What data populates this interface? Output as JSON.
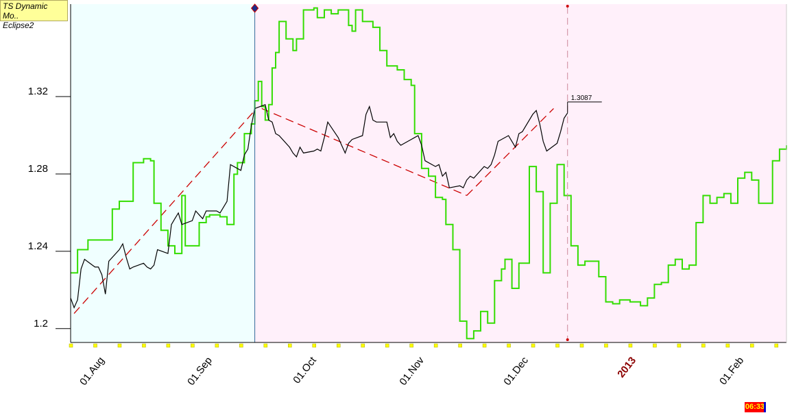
{
  "indicator": {
    "name": "TS Dynamic Mo..",
    "instance": "Eclipse2"
  },
  "clock": "06:33",
  "price_label": "1.3087",
  "colors": {
    "background_left": "#f0ffff",
    "background_right": "#fff0fa",
    "price_series": "#000000",
    "indicator_series": "#33dd00",
    "trend_lines": "#cc0000",
    "date_marker": "#336699",
    "tick_yellow": "#ffff00"
  },
  "chart_data": {
    "type": "line",
    "title": "",
    "xlabel": "",
    "ylabel": "",
    "ylim": [
      1.19,
      1.365
    ],
    "xlim": [
      "2012-07-23",
      "2013-02-14"
    ],
    "y_ticks": [
      "1.2",
      "1.24",
      "1.28",
      "1.32"
    ],
    "x_ticks": [
      {
        "date": "2012-08-01",
        "label": "01.Aug"
      },
      {
        "date": "2012-09-01",
        "label": "01.Sep"
      },
      {
        "date": "2012-10-01",
        "label": "01.Oct"
      },
      {
        "date": "2012-11-01",
        "label": "01.Nov"
      },
      {
        "date": "2012-12-01",
        "label": "01.Dec"
      },
      {
        "date": "2013-01-01",
        "label": "2013"
      },
      {
        "date": "2013-02-01",
        "label": "01.Feb"
      }
    ],
    "vertical_markers": [
      {
        "date": "2012-09-14",
        "style": "solid"
      },
      {
        "date": "2012-12-13",
        "style": "dashed"
      }
    ],
    "last_price": {
      "date": "2012-12-13",
      "value": 1.3087
    },
    "series": [
      {
        "role": "price",
        "points": [
          [
            "2012-07-23",
            1.213
          ],
          [
            "2012-07-24",
            1.208
          ],
          [
            "2012-07-25",
            1.212
          ],
          [
            "2012-07-26",
            1.228
          ],
          [
            "2012-07-27",
            1.233
          ],
          [
            "2012-07-30",
            1.229
          ],
          [
            "2012-07-31",
            1.229
          ],
          [
            "2012-08-01",
            1.225
          ],
          [
            "2012-08-02",
            1.215
          ],
          [
            "2012-08-03",
            1.232
          ],
          [
            "2012-08-06",
            1.238
          ],
          [
            "2012-08-07",
            1.241
          ],
          [
            "2012-08-08",
            1.234
          ],
          [
            "2012-08-09",
            1.228
          ],
          [
            "2012-08-10",
            1.229
          ],
          [
            "2012-08-13",
            1.231
          ],
          [
            "2012-08-14",
            1.229
          ],
          [
            "2012-08-15",
            1.228
          ],
          [
            "2012-08-16",
            1.23
          ],
          [
            "2012-08-17",
            1.238
          ],
          [
            "2012-08-20",
            1.236
          ],
          [
            "2012-08-21",
            1.251
          ],
          [
            "2012-08-22",
            1.254
          ],
          [
            "2012-08-23",
            1.257
          ],
          [
            "2012-08-24",
            1.251
          ],
          [
            "2012-08-27",
            1.253
          ],
          [
            "2012-08-28",
            1.258
          ],
          [
            "2012-08-29",
            1.256
          ],
          [
            "2012-08-30",
            1.254
          ],
          [
            "2012-08-31",
            1.258
          ],
          [
            "2012-09-03",
            1.258
          ],
          [
            "2012-09-04",
            1.257
          ],
          [
            "2012-09-05",
            1.26
          ],
          [
            "2012-09-06",
            1.263
          ],
          [
            "2012-09-07",
            1.282
          ],
          [
            "2012-09-10",
            1.279
          ],
          [
            "2012-09-11",
            1.287
          ],
          [
            "2012-09-12",
            1.29
          ],
          [
            "2012-09-13",
            1.302
          ],
          [
            "2012-09-14",
            1.311
          ],
          [
            "2012-09-17",
            1.313
          ],
          [
            "2012-09-18",
            1.305
          ],
          [
            "2012-09-19",
            1.304
          ],
          [
            "2012-09-20",
            1.298
          ],
          [
            "2012-09-21",
            1.297
          ],
          [
            "2012-09-24",
            1.291
          ],
          [
            "2012-09-25",
            1.288
          ],
          [
            "2012-09-26",
            1.286
          ],
          [
            "2012-09-27",
            1.291
          ],
          [
            "2012-09-28",
            1.288
          ],
          [
            "2012-10-01",
            1.289
          ],
          [
            "2012-10-02",
            1.29
          ],
          [
            "2012-10-03",
            1.289
          ],
          [
            "2012-10-04",
            1.296
          ],
          [
            "2012-10-05",
            1.304
          ],
          [
            "2012-10-08",
            1.296
          ],
          [
            "2012-10-09",
            1.292
          ],
          [
            "2012-10-10",
            1.288
          ],
          [
            "2012-10-11",
            1.293
          ],
          [
            "2012-10-12",
            1.295
          ],
          [
            "2012-10-15",
            1.297
          ],
          [
            "2012-10-16",
            1.308
          ],
          [
            "2012-10-17",
            1.312
          ],
          [
            "2012-10-18",
            1.305
          ],
          [
            "2012-10-19",
            1.304
          ],
          [
            "2012-10-22",
            1.304
          ],
          [
            "2012-10-23",
            1.296
          ],
          [
            "2012-10-24",
            1.298
          ],
          [
            "2012-10-25",
            1.294
          ],
          [
            "2012-10-26",
            1.292
          ],
          [
            "2012-10-29",
            1.295
          ],
          [
            "2012-10-30",
            1.296
          ],
          [
            "2012-10-31",
            1.297
          ],
          [
            "2012-11-01",
            1.292
          ],
          [
            "2012-11-02",
            1.284
          ],
          [
            "2012-11-05",
            1.281
          ],
          [
            "2012-11-06",
            1.282
          ],
          [
            "2012-11-07",
            1.276
          ],
          [
            "2012-11-08",
            1.278
          ],
          [
            "2012-11-09",
            1.27
          ],
          [
            "2012-11-12",
            1.271
          ],
          [
            "2012-11-13",
            1.27
          ],
          [
            "2012-11-14",
            1.274
          ],
          [
            "2012-11-15",
            1.276
          ],
          [
            "2012-11-16",
            1.275
          ],
          [
            "2012-11-19",
            1.281
          ],
          [
            "2012-11-20",
            1.28
          ],
          [
            "2012-11-21",
            1.282
          ],
          [
            "2012-11-22",
            1.287
          ],
          [
            "2012-11-23",
            1.294
          ],
          [
            "2012-11-26",
            1.297
          ],
          [
            "2012-11-27",
            1.294
          ],
          [
            "2012-11-28",
            1.291
          ],
          [
            "2012-11-29",
            1.298
          ],
          [
            "2012-11-30",
            1.299
          ],
          [
            "2012-12-03",
            1.308
          ],
          [
            "2012-12-04",
            1.31
          ],
          [
            "2012-12-05",
            1.303
          ],
          [
            "2012-12-06",
            1.294
          ],
          [
            "2012-12-07",
            1.289
          ],
          [
            "2012-12-10",
            1.293
          ],
          [
            "2012-12-11",
            1.299
          ],
          [
            "2012-12-12",
            1.306
          ],
          [
            "2012-12-13",
            1.3087
          ]
        ]
      },
      {
        "role": "indicator",
        "points": [
          [
            "2012-07-23",
            1.226
          ],
          [
            "2012-07-25",
            1.238
          ],
          [
            "2012-07-28",
            1.243
          ],
          [
            "2012-07-31",
            1.243
          ],
          [
            "2012-08-04",
            1.259
          ],
          [
            "2012-08-06",
            1.263
          ],
          [
            "2012-08-08",
            1.263
          ],
          [
            "2012-08-10",
            1.283
          ],
          [
            "2012-08-13",
            1.285
          ],
          [
            "2012-08-15",
            1.284
          ],
          [
            "2012-08-16",
            1.262
          ],
          [
            "2012-08-18",
            1.248
          ],
          [
            "2012-08-20",
            1.24
          ],
          [
            "2012-08-22",
            1.236
          ],
          [
            "2012-08-24",
            1.266
          ],
          [
            "2012-08-25",
            1.24
          ],
          [
            "2012-08-27",
            1.24
          ],
          [
            "2012-08-29",
            1.252
          ],
          [
            "2012-08-31",
            1.255
          ],
          [
            "2012-09-01",
            1.256
          ],
          [
            "2012-09-04",
            1.255
          ],
          [
            "2012-09-06",
            1.251
          ],
          [
            "2012-09-08",
            1.277
          ],
          [
            "2012-09-09",
            1.283
          ],
          [
            "2012-09-11",
            1.298
          ],
          [
            "2012-09-13",
            1.303
          ],
          [
            "2012-09-14",
            1.315
          ],
          [
            "2012-09-15",
            1.325
          ],
          [
            "2012-09-16",
            1.312
          ],
          [
            "2012-09-17",
            1.305
          ],
          [
            "2012-09-18",
            1.313
          ],
          [
            "2012-09-19",
            1.332
          ],
          [
            "2012-09-20",
            1.34
          ],
          [
            "2012-09-21",
            1.356
          ],
          [
            "2012-09-23",
            1.347
          ],
          [
            "2012-09-25",
            1.341
          ],
          [
            "2012-09-26",
            1.347
          ],
          [
            "2012-09-28",
            1.362
          ],
          [
            "2012-10-01",
            1.363
          ],
          [
            "2012-10-02",
            1.358
          ],
          [
            "2012-10-04",
            1.362
          ],
          [
            "2012-10-06",
            1.36
          ],
          [
            "2012-10-08",
            1.362
          ],
          [
            "2012-10-10",
            1.362
          ],
          [
            "2012-10-11",
            1.354
          ],
          [
            "2012-10-12",
            1.351
          ],
          [
            "2012-10-13",
            1.362
          ],
          [
            "2012-10-15",
            1.356
          ],
          [
            "2012-10-18",
            1.353
          ],
          [
            "2012-10-20",
            1.341
          ],
          [
            "2012-10-22",
            1.333
          ],
          [
            "2012-10-25",
            1.331
          ],
          [
            "2012-10-27",
            1.326
          ],
          [
            "2012-10-29",
            1.323
          ],
          [
            "2012-10-30",
            1.298
          ],
          [
            "2012-11-01",
            1.28
          ],
          [
            "2012-11-03",
            1.276
          ],
          [
            "2012-11-05",
            1.265
          ],
          [
            "2012-11-07",
            1.264
          ],
          [
            "2012-11-08",
            1.251
          ],
          [
            "2012-11-10",
            1.238
          ],
          [
            "2012-11-12",
            1.201
          ],
          [
            "2012-11-14",
            1.192
          ],
          [
            "2012-11-16",
            1.196
          ],
          [
            "2012-11-18",
            1.206
          ],
          [
            "2012-11-20",
            1.2
          ],
          [
            "2012-11-22",
            1.222
          ],
          [
            "2012-11-24",
            1.228
          ],
          [
            "2012-11-25",
            1.233
          ],
          [
            "2012-11-27",
            1.218
          ],
          [
            "2012-11-29",
            1.231
          ],
          [
            "2012-12-02",
            1.281
          ],
          [
            "2012-12-04",
            1.268
          ],
          [
            "2012-12-06",
            1.226
          ],
          [
            "2012-12-08",
            1.262
          ],
          [
            "2012-12-10",
            1.282
          ],
          [
            "2012-12-12",
            1.266
          ],
          [
            "2012-12-14",
            1.24
          ],
          [
            "2012-12-16",
            1.23
          ],
          [
            "2012-12-18",
            1.232
          ],
          [
            "2012-12-20",
            1.232
          ],
          [
            "2012-12-22",
            1.224
          ],
          [
            "2012-12-24",
            1.211
          ],
          [
            "2012-12-26",
            1.21
          ],
          [
            "2012-12-28",
            1.212
          ],
          [
            "2012-12-31",
            1.211
          ],
          [
            "2013-01-03",
            1.209
          ],
          [
            "2013-01-05",
            1.213
          ],
          [
            "2013-01-07",
            1.22
          ],
          [
            "2013-01-09",
            1.221
          ],
          [
            "2013-01-11",
            1.23
          ],
          [
            "2013-01-13",
            1.233
          ],
          [
            "2013-01-15",
            1.228
          ],
          [
            "2013-01-17",
            1.23
          ],
          [
            "2013-01-19",
            1.252
          ],
          [
            "2013-01-21",
            1.266
          ],
          [
            "2013-01-23",
            1.262
          ],
          [
            "2013-01-25",
            1.265
          ],
          [
            "2013-01-27",
            1.267
          ],
          [
            "2013-01-29",
            1.262
          ],
          [
            "2013-01-31",
            1.275
          ],
          [
            "2013-02-02",
            1.278
          ],
          [
            "2013-02-04",
            1.274
          ],
          [
            "2013-02-06",
            1.262
          ],
          [
            "2013-02-08",
            1.262
          ],
          [
            "2013-02-10",
            1.284
          ],
          [
            "2013-02-12",
            1.29
          ],
          [
            "2013-02-14",
            1.292
          ]
        ]
      }
    ],
    "trend_lines": [
      {
        "from": [
          "2012-07-24",
          1.205
        ],
        "to": [
          "2012-09-14",
          1.31
        ]
      },
      {
        "from": [
          "2012-09-16",
          1.311
        ],
        "to": [
          "2012-11-14",
          1.266
        ]
      },
      {
        "from": [
          "2012-11-14",
          1.266
        ],
        "to": [
          "2012-12-09",
          1.311
        ]
      }
    ]
  }
}
